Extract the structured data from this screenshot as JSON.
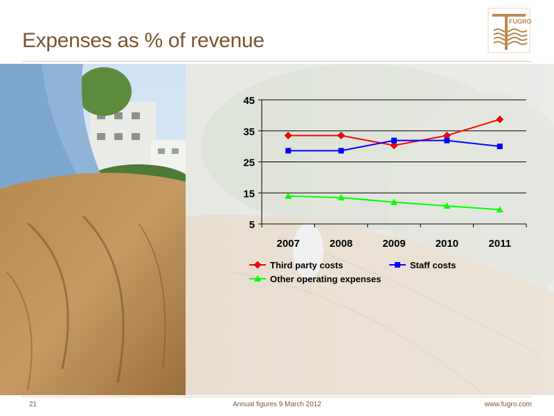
{
  "slide": {
    "title": "Expenses as % of revenue",
    "page_number": "21",
    "footer_center": "Annual figures 9 March 2012",
    "footer_url": "www.fugro.com",
    "logo_text": "FUGRO"
  },
  "colors": {
    "title": "#7a5430",
    "logo": "#b98a52",
    "third_party": "#ff0000",
    "staff": "#0000ff",
    "other": "#00ff00"
  },
  "chart_data": {
    "type": "line",
    "categories": [
      "2007",
      "2008",
      "2009",
      "2010",
      "2011"
    ],
    "ylim": [
      5,
      45
    ],
    "yticks": [
      5,
      15,
      25,
      35,
      45
    ],
    "grid": true,
    "legend_position": "bottom",
    "series": [
      {
        "name": "Third party costs",
        "color": "#ff0000",
        "marker": "diamond",
        "values": [
          33.5,
          33.5,
          30.3,
          33.5,
          38.7
        ]
      },
      {
        "name": "Staff costs",
        "color": "#0000ff",
        "marker": "square",
        "values": [
          28.6,
          28.6,
          31.9,
          31.9,
          30.0
        ]
      },
      {
        "name": "Other operating expenses",
        "color": "#00ff00",
        "marker": "triangle",
        "values": [
          14.0,
          13.5,
          12.0,
          10.8,
          9.6
        ]
      }
    ]
  }
}
